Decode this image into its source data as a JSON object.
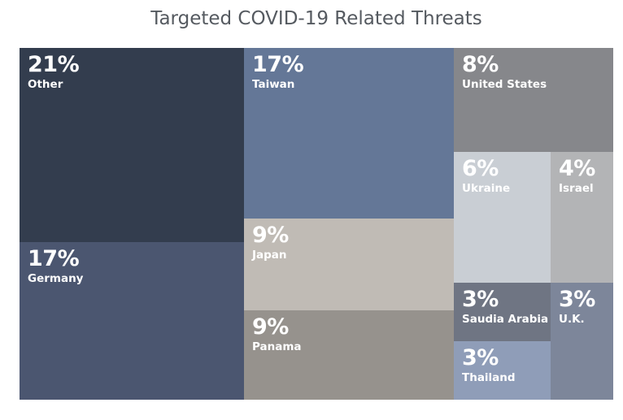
{
  "chart_data": {
    "type": "treemap",
    "title": "Targeted COVID-19 Related Threats",
    "items": [
      {
        "label": "Other",
        "value": 21,
        "display": "21%",
        "color": "#333d4e"
      },
      {
        "label": "Germany",
        "value": 17,
        "display": "17%",
        "color": "#4b5670"
      },
      {
        "label": "Taiwan",
        "value": 17,
        "display": "17%",
        "color": "#647797"
      },
      {
        "label": "Japan",
        "value": 9,
        "display": "9%",
        "color": "#c0bbb5"
      },
      {
        "label": "Panama",
        "value": 9,
        "display": "9%",
        "color": "#96928d"
      },
      {
        "label": "United States",
        "value": 8,
        "display": "8%",
        "color": "#86878b"
      },
      {
        "label": "Ukraine",
        "value": 6,
        "display": "6%",
        "color": "#c9ced4"
      },
      {
        "label": "Israel",
        "value": 4,
        "display": "4%",
        "color": "#b3b4b6"
      },
      {
        "label": "Saudia Arabia",
        "value": 3,
        "display": "3%",
        "color": "#6f7583"
      },
      {
        "label": "Thailand",
        "value": 3,
        "display": "3%",
        "color": "#8f9db8"
      },
      {
        "label": "U.K.",
        "value": 3,
        "display": "3%",
        "color": "#7d869a"
      }
    ]
  }
}
